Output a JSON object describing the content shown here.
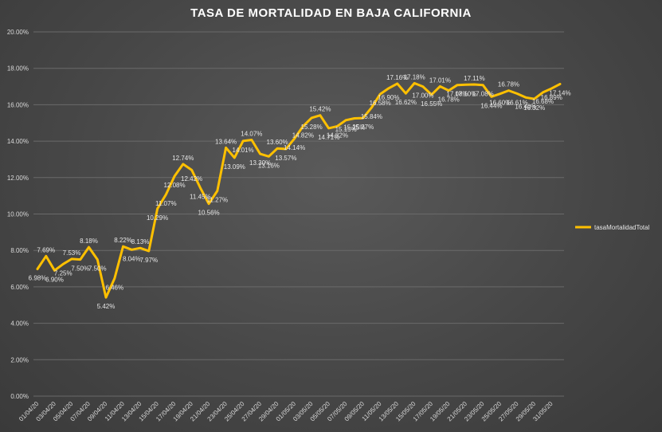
{
  "chart_data": {
    "type": "line",
    "title": "TASA DE MORTALIDAD EN BAJA CALIFORNIA",
    "xlabel": "",
    "ylabel": "",
    "ylim": [
      0,
      20
    ],
    "y_tick_labels": [
      "0.00%",
      "2.00%",
      "4.00%",
      "6.00%",
      "8.00%",
      "10.00%",
      "12.00%",
      "14.00%",
      "16.00%",
      "18.00%",
      "20.00%"
    ],
    "x_tick_labels": [
      "01/04/20",
      "03/04/20",
      "05/04/20",
      "07/04/20",
      "09/04/20",
      "11/04/20",
      "13/04/20",
      "15/04/20",
      "17/04/20",
      "19/04/20",
      "21/04/20",
      "23/04/20",
      "25/04/20",
      "27/04/20",
      "29/04/20",
      "01/05/20",
      "03/05/20",
      "05/05/20",
      "07/05/20",
      "09/05/20",
      "11/05/20",
      "13/05/20",
      "15/05/20",
      "17/05/20",
      "19/05/20",
      "21/05/20",
      "23/05/20",
      "25/05/20",
      "27/05/20",
      "29/05/20",
      "31/05/20"
    ],
    "grid": true,
    "legend_position": "right",
    "line_color": "#ffc000",
    "series": [
      {
        "name": "tasaMortalidadTotal",
        "values": [
          6.98,
          7.69,
          6.9,
          7.25,
          7.53,
          7.5,
          8.18,
          7.5,
          5.42,
          6.46,
          8.22,
          8.04,
          8.13,
          7.97,
          10.29,
          11.07,
          12.08,
          12.74,
          12.42,
          11.45,
          10.56,
          11.27,
          13.64,
          13.09,
          14.01,
          14.07,
          13.3,
          13.16,
          13.6,
          13.57,
          14.14,
          14.82,
          15.28,
          15.42,
          14.71,
          14.82,
          15.15,
          15.25,
          15.27,
          15.84,
          16.58,
          16.9,
          17.16,
          16.62,
          17.18,
          17.0,
          16.55,
          17.01,
          16.78,
          17.08,
          17.1,
          17.11,
          17.08,
          16.44,
          16.6,
          16.78,
          16.61,
          16.4,
          16.32,
          16.68,
          16.89,
          17.14
        ],
        "labels": [
          "6.98%",
          "7.69%",
          "6.90%",
          "7.25%",
          "7.53%",
          "7.50%",
          "8.18%",
          "7.50%",
          "5.42%",
          "6.46%",
          "8.22%",
          "8.04%",
          "8.13%",
          "7.97%",
          "10.29%",
          "11.07%",
          "12.08%",
          "12.74%",
          "12.42%",
          "11.45%",
          "10.56%",
          "11.27%",
          "13.64%",
          "13.09%",
          "14.01%",
          "14.07%",
          "13.30%",
          "13.16%",
          "13.60%",
          "13.57%",
          "14.14%",
          "14.82%",
          "15.28%",
          "15.42%",
          "14.71%",
          "14.82%",
          "15.15%",
          "15.25%",
          "15.27%",
          "15.84%",
          "16.58%",
          "16.90%",
          "17.16%",
          "16.62%",
          "17.18%",
          "17.00%",
          "16.55%",
          "17.01%",
          "16.78%",
          "17.08%",
          "17.10%",
          "17.11%",
          "17.08%",
          "16.44%",
          "16.60%",
          "16.78%",
          "16.61%",
          "16.40%",
          "16.32%",
          "16.68%",
          "16.89%",
          "17.14%"
        ]
      }
    ]
  }
}
